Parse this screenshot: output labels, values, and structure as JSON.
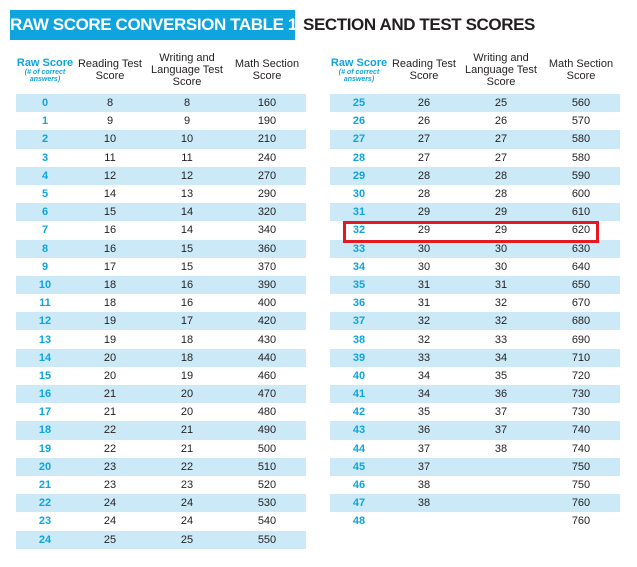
{
  "title": "RAW SCORE CONVERSION TABLE 1",
  "subtitle": "SECTION AND TEST SCORES",
  "headers": {
    "raw": "Raw Score",
    "raw_sub": "(# of correct answers)",
    "reading": "Reading Test Score",
    "writing": "Writing and Language Test Score",
    "math": "Math Section Score"
  },
  "colors": {
    "accent": "#0ea5de",
    "row_alt": "#cbe9f7",
    "highlight": "#e21b23"
  },
  "highlighted_raw_score": "32",
  "left_rows": [
    {
      "raw": "0",
      "reading": "8",
      "writing": "8",
      "math": "160"
    },
    {
      "raw": "1",
      "reading": "9",
      "writing": "9",
      "math": "190"
    },
    {
      "raw": "2",
      "reading": "10",
      "writing": "10",
      "math": "210"
    },
    {
      "raw": "3",
      "reading": "11",
      "writing": "11",
      "math": "240"
    },
    {
      "raw": "4",
      "reading": "12",
      "writing": "12",
      "math": "270"
    },
    {
      "raw": "5",
      "reading": "14",
      "writing": "13",
      "math": "290"
    },
    {
      "raw": "6",
      "reading": "15",
      "writing": "14",
      "math": "320"
    },
    {
      "raw": "7",
      "reading": "16",
      "writing": "14",
      "math": "340"
    },
    {
      "raw": "8",
      "reading": "16",
      "writing": "15",
      "math": "360"
    },
    {
      "raw": "9",
      "reading": "17",
      "writing": "15",
      "math": "370"
    },
    {
      "raw": "10",
      "reading": "18",
      "writing": "16",
      "math": "390"
    },
    {
      "raw": "11",
      "reading": "18",
      "writing": "16",
      "math": "400"
    },
    {
      "raw": "12",
      "reading": "19",
      "writing": "17",
      "math": "420"
    },
    {
      "raw": "13",
      "reading": "19",
      "writing": "18",
      "math": "430"
    },
    {
      "raw": "14",
      "reading": "20",
      "writing": "18",
      "math": "440"
    },
    {
      "raw": "15",
      "reading": "20",
      "writing": "19",
      "math": "460"
    },
    {
      "raw": "16",
      "reading": "21",
      "writing": "20",
      "math": "470"
    },
    {
      "raw": "17",
      "reading": "21",
      "writing": "20",
      "math": "480"
    },
    {
      "raw": "18",
      "reading": "22",
      "writing": "21",
      "math": "490"
    },
    {
      "raw": "19",
      "reading": "22",
      "writing": "21",
      "math": "500"
    },
    {
      "raw": "20",
      "reading": "23",
      "writing": "22",
      "math": "510"
    },
    {
      "raw": "21",
      "reading": "23",
      "writing": "23",
      "math": "520"
    },
    {
      "raw": "22",
      "reading": "24",
      "writing": "24",
      "math": "530"
    },
    {
      "raw": "23",
      "reading": "24",
      "writing": "24",
      "math": "540"
    },
    {
      "raw": "24",
      "reading": "25",
      "writing": "25",
      "math": "550"
    }
  ],
  "right_rows": [
    {
      "raw": "25",
      "reading": "26",
      "writing": "25",
      "math": "560"
    },
    {
      "raw": "26",
      "reading": "26",
      "writing": "26",
      "math": "570"
    },
    {
      "raw": "27",
      "reading": "27",
      "writing": "27",
      "math": "580"
    },
    {
      "raw": "28",
      "reading": "27",
      "writing": "27",
      "math": "580"
    },
    {
      "raw": "29",
      "reading": "28",
      "writing": "28",
      "math": "590"
    },
    {
      "raw": "30",
      "reading": "28",
      "writing": "28",
      "math": "600"
    },
    {
      "raw": "31",
      "reading": "29",
      "writing": "29",
      "math": "610"
    },
    {
      "raw": "32",
      "reading": "29",
      "writing": "29",
      "math": "620"
    },
    {
      "raw": "33",
      "reading": "30",
      "writing": "30",
      "math": "630"
    },
    {
      "raw": "34",
      "reading": "30",
      "writing": "30",
      "math": "640"
    },
    {
      "raw": "35",
      "reading": "31",
      "writing": "31",
      "math": "650"
    },
    {
      "raw": "36",
      "reading": "31",
      "writing": "32",
      "math": "670"
    },
    {
      "raw": "37",
      "reading": "32",
      "writing": "32",
      "math": "680"
    },
    {
      "raw": "38",
      "reading": "32",
      "writing": "33",
      "math": "690"
    },
    {
      "raw": "39",
      "reading": "33",
      "writing": "34",
      "math": "710"
    },
    {
      "raw": "40",
      "reading": "34",
      "writing": "35",
      "math": "720"
    },
    {
      "raw": "41",
      "reading": "34",
      "writing": "36",
      "math": "730"
    },
    {
      "raw": "42",
      "reading": "35",
      "writing": "37",
      "math": "730"
    },
    {
      "raw": "43",
      "reading": "36",
      "writing": "37",
      "math": "740"
    },
    {
      "raw": "44",
      "reading": "37",
      "writing": "38",
      "math": "740"
    },
    {
      "raw": "45",
      "reading": "37",
      "writing": "",
      "math": "750"
    },
    {
      "raw": "46",
      "reading": "38",
      "writing": "",
      "math": "750"
    },
    {
      "raw": "47",
      "reading": "38",
      "writing": "",
      "math": "760"
    },
    {
      "raw": "48",
      "reading": "",
      "writing": "",
      "math": "760"
    }
  ]
}
